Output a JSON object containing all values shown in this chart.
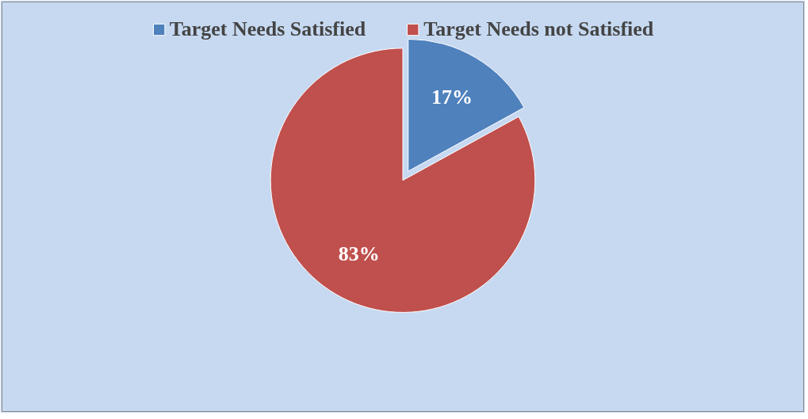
{
  "chart_data": {
    "type": "pie",
    "categories": [
      "Target Needs Satisfied",
      "Target Needs not Satisfied"
    ],
    "values": [
      17,
      83
    ],
    "colors": [
      "#4f81bd",
      "#c0504d"
    ],
    "value_labels": [
      "17%",
      "83%"
    ],
    "legend": "top"
  }
}
